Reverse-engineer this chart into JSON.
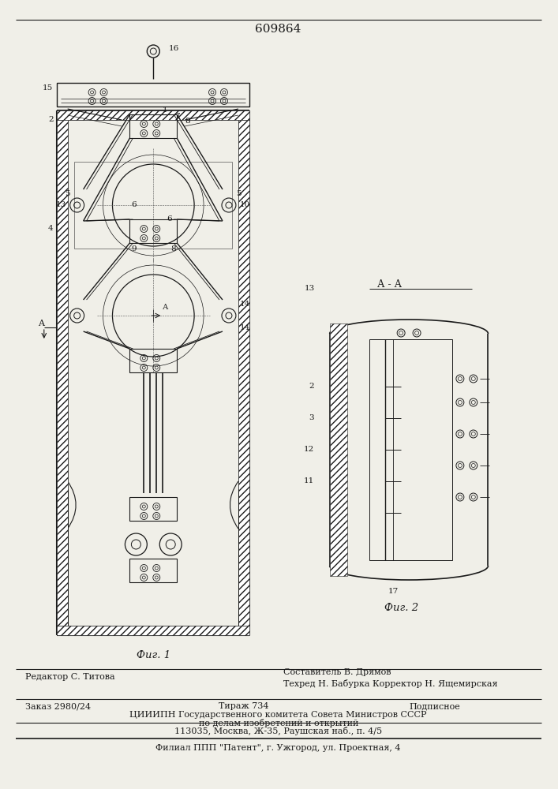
{
  "patent_number": "609864",
  "fig1_caption": "Фиг. 1",
  "fig2_caption": "Фиг. 2",
  "section_label": "А - А",
  "editor_line": "Редактор С. Титова",
  "composer_line": "Составитель В. Дрямов",
  "techred_line": "Техред Н. Бабурка Корректор Н. Ящемирская",
  "order_line": "Заказ 2980/24",
  "tirazh_line": "Тираж 734",
  "podpisnoe_line": "Подписное",
  "org_line1": "ЦИИИПН Государственного комитета Совета Министров СССР",
  "org_line2": "по делам изобретений и открытий",
  "address_line": "113035, Москва, Ж-35, Раушская наб., п. 4/5",
  "filial_line": "Филиал ППП \"Патент\", г. Ужгород, ул. Проектная, 4",
  "bg_color": "#f0efe8",
  "line_color": "#1a1a1a"
}
